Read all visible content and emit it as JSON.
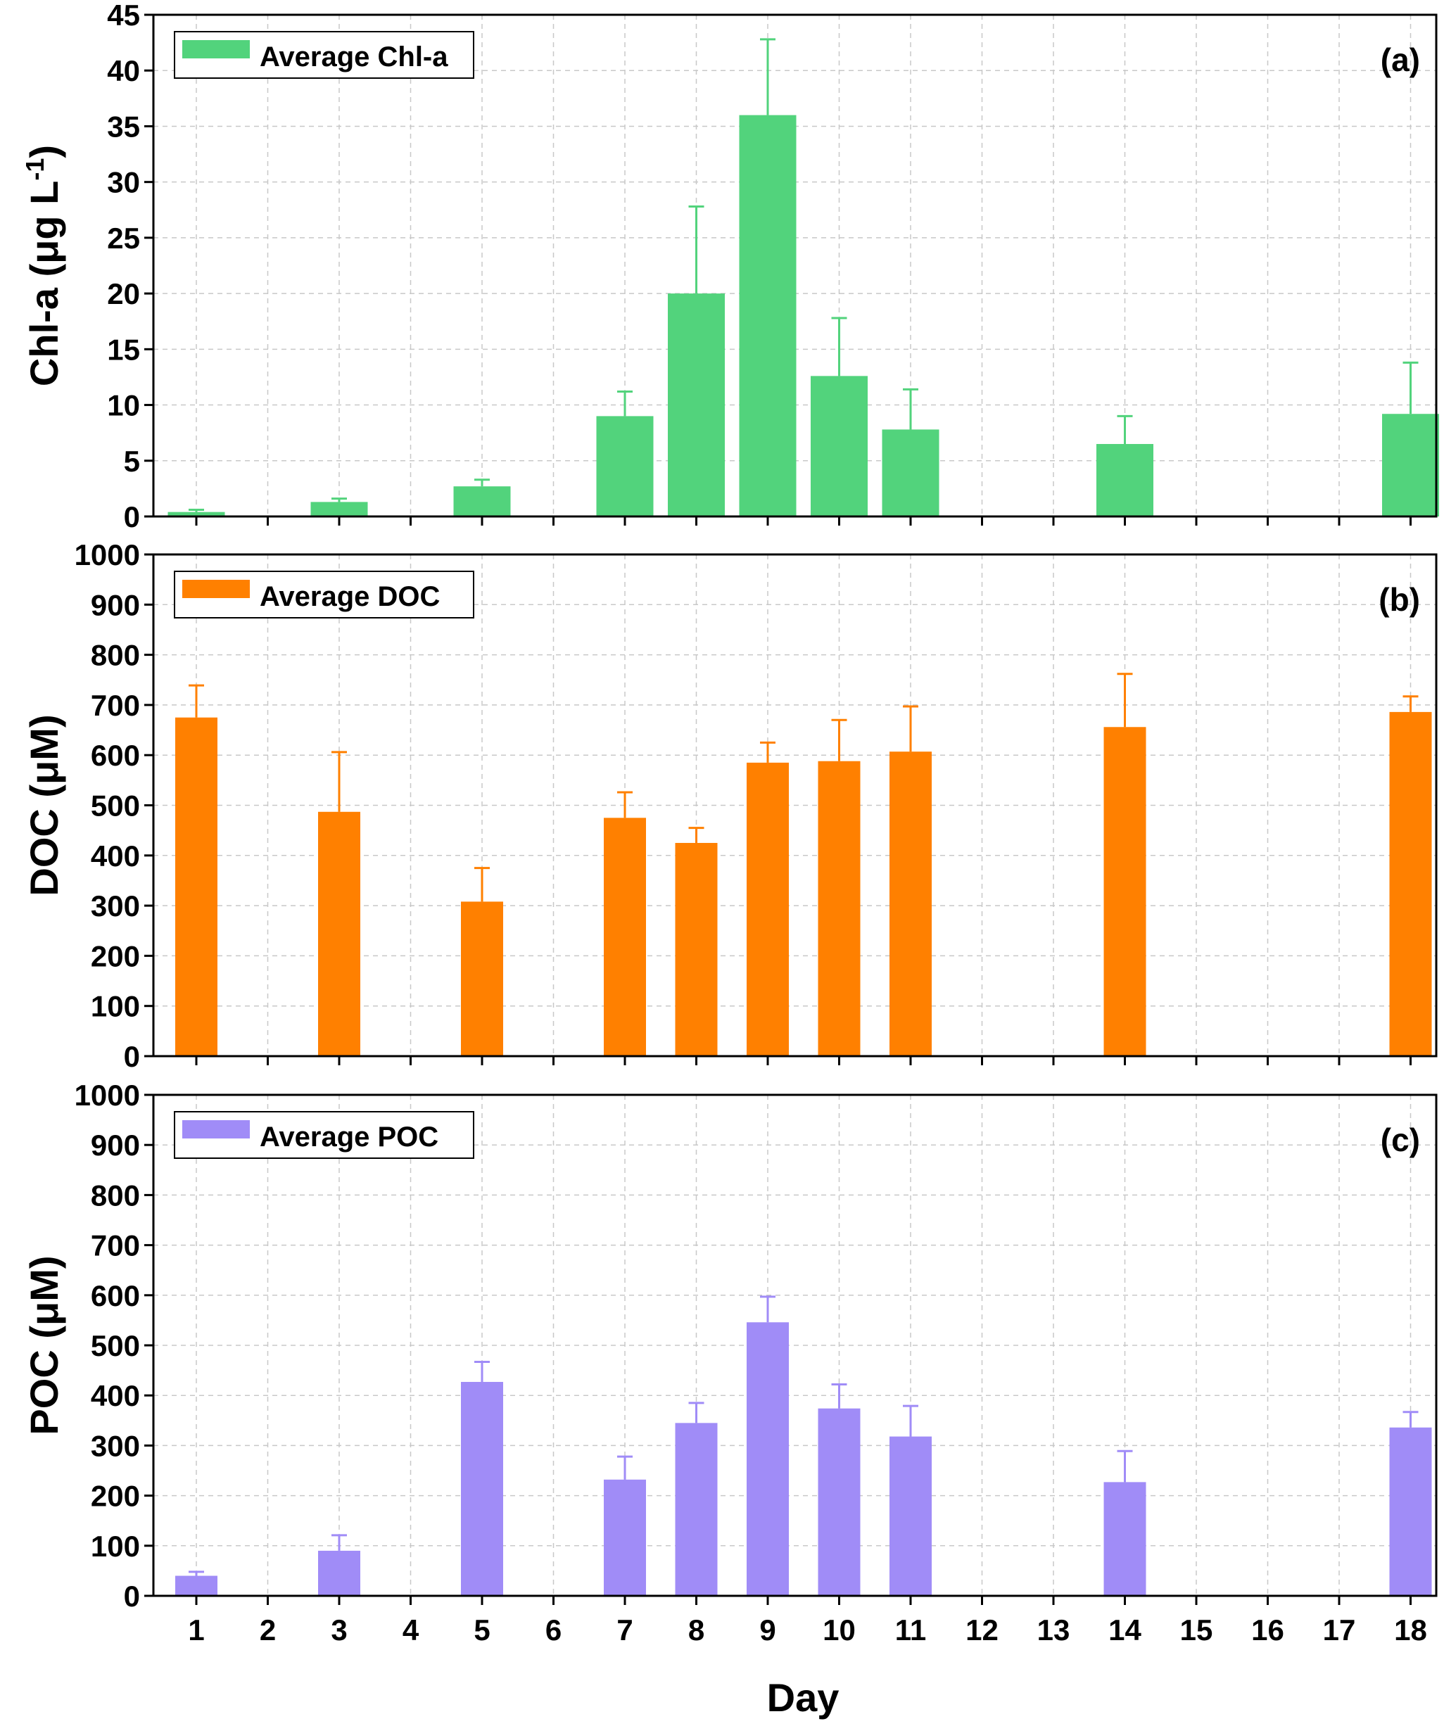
{
  "x_axis": {
    "title": "Day",
    "tick_labels": [
      "1",
      "2",
      "3",
      "4",
      "5",
      "6",
      "7",
      "8",
      "9",
      "10",
      "11",
      "12",
      "13",
      "14",
      "15",
      "16",
      "17",
      "18"
    ]
  },
  "chart_data": [
    {
      "type": "bar",
      "panel_label": "(a)",
      "ylabel": "Chl-a (μg L-1)",
      "ylabel_main": "Chl-a (μg L",
      "ylabel_sup": "-1",
      "ylabel_end": ")",
      "ylim": [
        0,
        45
      ],
      "yticks": [
        0,
        5,
        10,
        15,
        20,
        25,
        30,
        35,
        40,
        45
      ],
      "grid": true,
      "legend_position": "top-left",
      "color": "#52d37c",
      "categories": [
        1,
        3,
        5,
        7,
        8,
        9,
        10,
        11,
        14,
        18
      ],
      "series": [
        {
          "name": "Average Chl-a",
          "values": [
            0.4,
            1.3,
            2.7,
            9.0,
            20.0,
            36.0,
            12.6,
            7.8,
            6.5,
            9.2
          ],
          "error_upper": [
            0.2,
            0.3,
            0.6,
            2.2,
            7.8,
            6.8,
            5.2,
            3.6,
            2.5,
            4.6
          ]
        }
      ]
    },
    {
      "type": "bar",
      "panel_label": "(b)",
      "ylabel": "DOC (μM)",
      "ylabel_main": "DOC (μM)",
      "ylabel_sup": "",
      "ylabel_end": "",
      "ylim": [
        0,
        1000
      ],
      "yticks": [
        0,
        100,
        200,
        300,
        400,
        500,
        600,
        700,
        800,
        900,
        1000
      ],
      "grid": true,
      "legend_position": "top-left",
      "color": "#ff8000",
      "categories": [
        1,
        3,
        5,
        7,
        8,
        9,
        10,
        11,
        14,
        18
      ],
      "series": [
        {
          "name": "Average DOC",
          "values": [
            675,
            487,
            308,
            475,
            425,
            585,
            588,
            607,
            656,
            686
          ],
          "error_upper": [
            64,
            119,
            67,
            51,
            30,
            40,
            82,
            90,
            106,
            31
          ]
        }
      ]
    },
    {
      "type": "bar",
      "panel_label": "(c)",
      "ylabel": "POC (μM)",
      "ylabel_main": "POC (μM)",
      "ylabel_sup": "",
      "ylabel_end": "",
      "ylim": [
        0,
        1000
      ],
      "yticks": [
        0,
        100,
        200,
        300,
        400,
        500,
        600,
        700,
        800,
        900,
        1000
      ],
      "grid": true,
      "legend_position": "top-left",
      "color": "#a08cf7",
      "categories": [
        1,
        3,
        5,
        7,
        8,
        9,
        10,
        11,
        14,
        18
      ],
      "series": [
        {
          "name": "Average POC",
          "values": [
            40,
            90,
            427,
            232,
            345,
            546,
            374,
            318,
            227,
            336
          ],
          "error_upper": [
            8,
            31,
            40,
            46,
            40,
            51,
            48,
            61,
            62,
            31
          ]
        }
      ]
    }
  ]
}
